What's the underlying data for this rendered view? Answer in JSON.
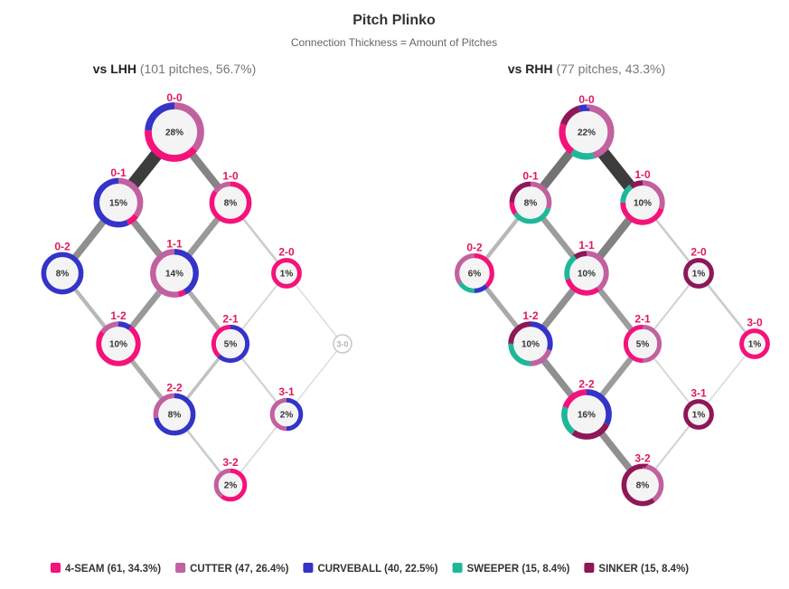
{
  "chart_data": {
    "type": "diagram",
    "title": "Pitch Plinko",
    "subtitle": "Connection Thickness = Amount of Pitches",
    "pitch_types": [
      {
        "key": "4seam",
        "name": "4-SEAM",
        "count": 61,
        "pct": "34.3%",
        "color": "#f4127b"
      },
      {
        "key": "cutter",
        "name": "CUTTER",
        "count": 47,
        "pct": "26.4%",
        "color": "#c2619f"
      },
      {
        "key": "curve",
        "name": "CURVEBALL",
        "count": 40,
        "pct": "22.5%",
        "color": "#3434c8"
      },
      {
        "key": "sweeper",
        "name": "SWEEPER",
        "count": 15,
        "pct": "8.4%",
        "color": "#1fb79a"
      },
      {
        "key": "sinker",
        "name": "SINKER",
        "count": 15,
        "pct": "8.4%",
        "color": "#8e1758"
      }
    ],
    "panels": [
      {
        "id": "lhh",
        "title_strong": "vs LHH",
        "title_rest": "(101 pitches, 56.7%)",
        "counts": [
          {
            "count": "0-0",
            "pct": "28%",
            "mix": {
              "cutter": 0.36,
              "4seam": 0.4,
              "curve": 0.24
            }
          },
          {
            "count": "0-1",
            "pct": "15%",
            "mix": {
              "cutter": 0.35,
              "4seam": 0.08,
              "curve": 0.57
            }
          },
          {
            "count": "1-0",
            "pct": "8%",
            "mix": {
              "4seam": 0.85,
              "cutter": 0.15
            }
          },
          {
            "count": "0-2",
            "pct": "8%",
            "mix": {
              "curve": 1.0
            }
          },
          {
            "count": "1-1",
            "pct": "14%",
            "mix": {
              "curve": 0.42,
              "4seam": 0.05,
              "cutter": 0.53
            }
          },
          {
            "count": "2-0",
            "pct": "1%",
            "mix": {
              "4seam": 1.0
            }
          },
          {
            "count": "1-2",
            "pct": "10%",
            "mix": {
              "curve": 0.1,
              "4seam": 0.75,
              "cutter": 0.15
            }
          },
          {
            "count": "2-1",
            "pct": "5%",
            "mix": {
              "curve": 0.62,
              "4seam": 0.38
            }
          },
          {
            "count": "3-0",
            "pct": "",
            "mix": {}
          },
          {
            "count": "2-2",
            "pct": "8%",
            "mix": {
              "curve": 0.72,
              "cutter": 0.28
            }
          },
          {
            "count": "3-1",
            "pct": "2%",
            "mix": {
              "curve": 0.5,
              "cutter": 0.5
            }
          },
          {
            "count": "3-2",
            "pct": "2%",
            "mix": {
              "4seam": 0.6,
              "cutter": 0.4
            }
          }
        ],
        "links": [
          {
            "from": "0-0",
            "to": "0-1",
            "weight": 16
          },
          {
            "from": "0-0",
            "to": "1-0",
            "weight": 9
          },
          {
            "from": "0-1",
            "to": "0-2",
            "weight": 8
          },
          {
            "from": "0-1",
            "to": "1-1",
            "weight": 8
          },
          {
            "from": "1-0",
            "to": "1-1",
            "weight": 7
          },
          {
            "from": "1-0",
            "to": "2-0",
            "weight": 2
          },
          {
            "from": "0-2",
            "to": "1-2",
            "weight": 4
          },
          {
            "from": "1-1",
            "to": "1-2",
            "weight": 7
          },
          {
            "from": "1-1",
            "to": "2-1",
            "weight": 5
          },
          {
            "from": "2-0",
            "to": "2-1",
            "weight": 1
          },
          {
            "from": "2-0",
            "to": "3-0",
            "weight": 0.5
          },
          {
            "from": "1-2",
            "to": "2-2",
            "weight": 5
          },
          {
            "from": "2-1",
            "to": "2-2",
            "weight": 3
          },
          {
            "from": "2-1",
            "to": "3-1",
            "weight": 1.5
          },
          {
            "from": "3-0",
            "to": "3-1",
            "weight": 0.5
          },
          {
            "from": "2-2",
            "to": "3-2",
            "weight": 2
          },
          {
            "from": "3-1",
            "to": "3-2",
            "weight": 0.8
          }
        ]
      },
      {
        "id": "rhh",
        "title_strong": "vs RHH",
        "title_rest": "(77 pitches, 43.3%)",
        "counts": [
          {
            "count": "0-0",
            "pct": "22%",
            "mix": {
              "cutter": 0.45,
              "sweeper": 0.15,
              "4seam": 0.2,
              "sinker": 0.15,
              "curve": 0.05
            }
          },
          {
            "count": "0-1",
            "pct": "8%",
            "mix": {
              "cutter": 0.3,
              "sweeper": 0.35,
              "4seam": 0.1,
              "sinker": 0.25
            }
          },
          {
            "count": "1-0",
            "pct": "10%",
            "mix": {
              "cutter": 0.3,
              "4seam": 0.45,
              "sweeper": 0.15,
              "sinker": 0.1
            }
          },
          {
            "count": "0-2",
            "pct": "6%",
            "mix": {
              "4seam": 0.38,
              "curve": 0.12,
              "sweeper": 0.15,
              "cutter": 0.35
            }
          },
          {
            "count": "1-1",
            "pct": "10%",
            "mix": {
              "cutter": 0.4,
              "4seam": 0.3,
              "sweeper": 0.2,
              "sinker": 0.1
            }
          },
          {
            "count": "2-0",
            "pct": "1%",
            "mix": {
              "sinker": 1.0
            }
          },
          {
            "count": "1-2",
            "pct": "10%",
            "mix": {
              "curve": 0.3,
              "cutter": 0.2,
              "sweeper": 0.25,
              "sinker": 0.25
            }
          },
          {
            "count": "2-1",
            "pct": "5%",
            "mix": {
              "cutter": 0.5,
              "4seam": 0.5
            }
          },
          {
            "count": "3-0",
            "pct": "1%",
            "mix": {
              "4seam": 1.0
            }
          },
          {
            "count": "2-2",
            "pct": "16%",
            "mix": {
              "curve": 0.32,
              "sinker": 0.28,
              "sweeper": 0.2,
              "4seam": 0.2
            }
          },
          {
            "count": "3-1",
            "pct": "1%",
            "mix": {
              "sinker": 1.0
            }
          },
          {
            "count": "3-2",
            "pct": "8%",
            "mix": {
              "cutter": 0.4,
              "sinker": 0.6
            }
          }
        ],
        "links": [
          {
            "from": "0-0",
            "to": "0-1",
            "weight": 8
          },
          {
            "from": "0-0",
            "to": "1-0",
            "weight": 12
          },
          {
            "from": "0-1",
            "to": "0-2",
            "weight": 3
          },
          {
            "from": "0-1",
            "to": "1-1",
            "weight": 5
          },
          {
            "from": "1-0",
            "to": "1-1",
            "weight": 7
          },
          {
            "from": "1-0",
            "to": "2-0",
            "weight": 1.5
          },
          {
            "from": "0-2",
            "to": "1-2",
            "weight": 4
          },
          {
            "from": "1-1",
            "to": "1-2",
            "weight": 6
          },
          {
            "from": "1-1",
            "to": "2-1",
            "weight": 5
          },
          {
            "from": "2-0",
            "to": "2-1",
            "weight": 1
          },
          {
            "from": "2-0",
            "to": "3-0",
            "weight": 1.5
          },
          {
            "from": "1-2",
            "to": "2-2",
            "weight": 6
          },
          {
            "from": "2-1",
            "to": "2-2",
            "weight": 5
          },
          {
            "from": "2-1",
            "to": "3-1",
            "weight": 0.8
          },
          {
            "from": "3-0",
            "to": "3-1",
            "weight": 0.5
          },
          {
            "from": "2-2",
            "to": "3-2",
            "weight": 6
          },
          {
            "from": "3-1",
            "to": "3-2",
            "weight": 1
          }
        ]
      }
    ]
  }
}
